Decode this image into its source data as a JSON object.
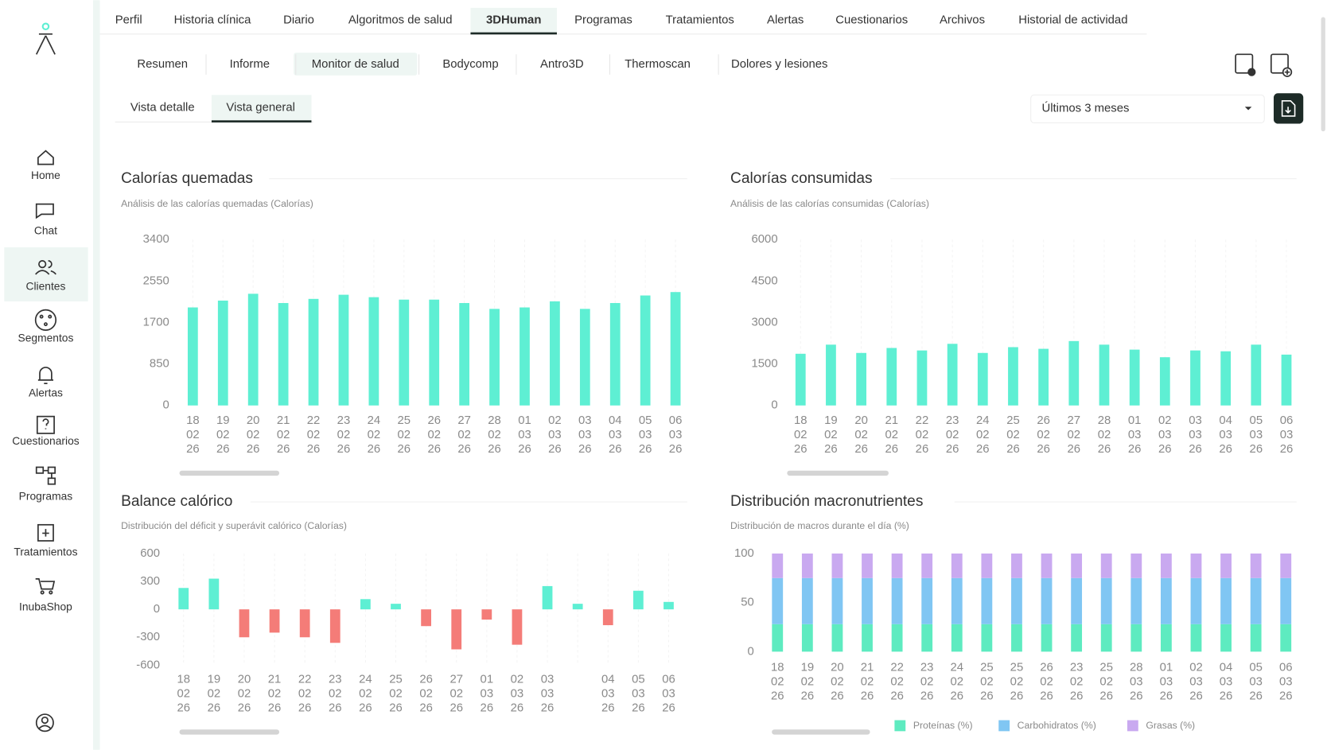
{
  "nav": {
    "tabs": [
      "Perfil",
      "Historia clínica",
      "Diario",
      "Algoritmos de salud",
      "3DHuman",
      "Programas",
      "Tratamientos",
      "Alertas",
      "Cuestionarios",
      "Archivos",
      "Historial de actividad"
    ],
    "active": 4
  },
  "subnav": {
    "tabs": [
      "Resumen",
      "Informe",
      "Monitor de salud",
      "Bodycomp",
      "Antro3D",
      "Thermoscan",
      "Dolores y lesiones"
    ],
    "active": 2
  },
  "views": {
    "tabs": [
      "Vista detalle",
      "Vista general"
    ],
    "active": 1
  },
  "range_select": "Últimos 3 meses",
  "sidebar": {
    "items": [
      "Home",
      "Chat",
      "Clientes",
      "Segmentos",
      "Alertas",
      "Cuestionarios",
      "Programas",
      "Tratamientos",
      "InubaShop"
    ],
    "active": 2
  },
  "chart_data": [
    {
      "type": "bar",
      "title": "Calorías quemadas",
      "subtitle": "Análisis de las calorías quemadas (Calorías)",
      "categories": [
        [
          "18",
          "02",
          "26"
        ],
        [
          "19",
          "02",
          "26"
        ],
        [
          "20",
          "02",
          "26"
        ],
        [
          "21",
          "02",
          "26"
        ],
        [
          "22",
          "02",
          "26"
        ],
        [
          "23",
          "02",
          "26"
        ],
        [
          "24",
          "02",
          "26"
        ],
        [
          "25",
          "02",
          "26"
        ],
        [
          "26",
          "02",
          "26"
        ],
        [
          "27",
          "02",
          "26"
        ],
        [
          "28",
          "02",
          "26"
        ],
        [
          "01",
          "03",
          "26"
        ],
        [
          "02",
          "03",
          "26"
        ],
        [
          "03",
          "03",
          "26"
        ],
        [
          "04",
          "03",
          "26"
        ],
        [
          "05",
          "03",
          "26"
        ],
        [
          "06",
          "03",
          "26"
        ]
      ],
      "values": [
        2010,
        2150,
        2290,
        2100,
        2185,
        2270,
        2220,
        2170,
        2170,
        2100,
        1980,
        2010,
        2135,
        1980,
        2100,
        2255,
        2325
      ],
      "color": "#5eefd3",
      "ylim": [
        0,
        3400
      ],
      "yticks": [
        0,
        850,
        1700,
        2550,
        3400
      ]
    },
    {
      "type": "bar",
      "title": "Calorías consumidas",
      "subtitle": "Análisis de las calorías consumidas (Calorías)",
      "categories": [
        [
          "18",
          "02",
          "26"
        ],
        [
          "19",
          "02",
          "26"
        ],
        [
          "20",
          "02",
          "26"
        ],
        [
          "21",
          "02",
          "26"
        ],
        [
          "22",
          "02",
          "26"
        ],
        [
          "23",
          "02",
          "26"
        ],
        [
          "24",
          "02",
          "26"
        ],
        [
          "25",
          "02",
          "26"
        ],
        [
          "26",
          "02",
          "26"
        ],
        [
          "27",
          "02",
          "26"
        ],
        [
          "28",
          "02",
          "26"
        ],
        [
          "01",
          "03",
          "26"
        ],
        [
          "02",
          "03",
          "26"
        ],
        [
          "03",
          "03",
          "26"
        ],
        [
          "04",
          "03",
          "26"
        ],
        [
          "05",
          "03",
          "26"
        ],
        [
          "06",
          "03",
          "26"
        ]
      ],
      "values": [
        1870,
        2200,
        1900,
        2080,
        1990,
        2230,
        1900,
        2110,
        2050,
        2330,
        2200,
        2020,
        1745,
        1990,
        1960,
        2200,
        1840
      ],
      "color": "#5eefd3",
      "ylim": [
        0,
        6000
      ],
      "yticks": [
        0,
        1500,
        3000,
        4500,
        6000
      ]
    },
    {
      "type": "bar",
      "title": "Balance calórico",
      "subtitle": "Distribución del déficit y superávit calórico (Calorías)",
      "categories": [
        [
          "18",
          "02",
          "26"
        ],
        [
          "19",
          "02",
          "26"
        ],
        [
          "20",
          "02",
          "26"
        ],
        [
          "21",
          "02",
          "26"
        ],
        [
          "22",
          "02",
          "26"
        ],
        [
          "23",
          "02",
          "26"
        ],
        [
          "24",
          "02",
          "26"
        ],
        [
          "25",
          "02",
          "26"
        ],
        [
          "26",
          "02",
          "26"
        ],
        [
          "27",
          "02",
          "26"
        ],
        [
          "01",
          "03",
          "26"
        ],
        [
          "02",
          "03",
          "26"
        ],
        [
          "03",
          "03",
          "26"
        ],
        null,
        [
          "04",
          "03",
          "26"
        ],
        [
          "05",
          "03",
          "26"
        ],
        [
          "06",
          "03",
          "26"
        ]
      ],
      "values": [
        230,
        330,
        -300,
        -250,
        -300,
        -360,
        110,
        60,
        -180,
        -430,
        -110,
        -380,
        250,
        60,
        -170,
        200,
        80
      ],
      "color": "#5eefd3",
      "negative_color": "#f47c78",
      "ylim": [
        -600,
        600
      ],
      "yticks": [
        -600,
        -300,
        0,
        300,
        600
      ]
    },
    {
      "type": "stacked_bar",
      "title": "Distribución macronutrientes",
      "subtitle": "Distribución de macros durante el día (%)",
      "categories": [
        [
          "18",
          "02",
          "26"
        ],
        [
          "19",
          "02",
          "26"
        ],
        [
          "20",
          "02",
          "26"
        ],
        [
          "21",
          "02",
          "26"
        ],
        [
          "22",
          "02",
          "26"
        ],
        [
          "23",
          "02",
          "26"
        ],
        [
          "24",
          "02",
          "26"
        ],
        [
          "25",
          "02",
          "26"
        ],
        [
          "25",
          "02",
          "26"
        ],
        [
          "26",
          "02",
          "26"
        ],
        [
          "23",
          "02",
          "26"
        ],
        [
          "25",
          "02",
          "26"
        ],
        [
          "28",
          "03",
          "26"
        ],
        [
          "01",
          "03",
          "26"
        ],
        [
          "02",
          "03",
          "26"
        ],
        [
          "04",
          "03",
          "26"
        ],
        [
          "05",
          "03",
          "26"
        ],
        [
          "06",
          "03",
          "26"
        ]
      ],
      "series": [
        {
          "name": "Proteínas (%)",
          "color": "#5eebc0",
          "values": [
            28,
            28,
            28,
            28,
            28,
            28,
            28,
            28,
            28,
            28,
            28,
            28,
            28,
            28,
            28,
            28,
            28,
            28
          ]
        },
        {
          "name": "Carbohidratos (%)",
          "color": "#80c6f3",
          "values": [
            47,
            47,
            47,
            47,
            47,
            47,
            47,
            47,
            47,
            47,
            47,
            47,
            47,
            47,
            47,
            47,
            47,
            47
          ]
        },
        {
          "name": "Grasas (%)",
          "color": "#c9a9f0",
          "values": [
            25,
            25,
            25,
            25,
            25,
            25,
            25,
            25,
            25,
            25,
            25,
            25,
            25,
            25,
            25,
            25,
            25,
            25
          ]
        }
      ],
      "ylim": [
        0,
        100
      ],
      "yticks": [
        0,
        50,
        100
      ],
      "legend": "bottom"
    }
  ]
}
